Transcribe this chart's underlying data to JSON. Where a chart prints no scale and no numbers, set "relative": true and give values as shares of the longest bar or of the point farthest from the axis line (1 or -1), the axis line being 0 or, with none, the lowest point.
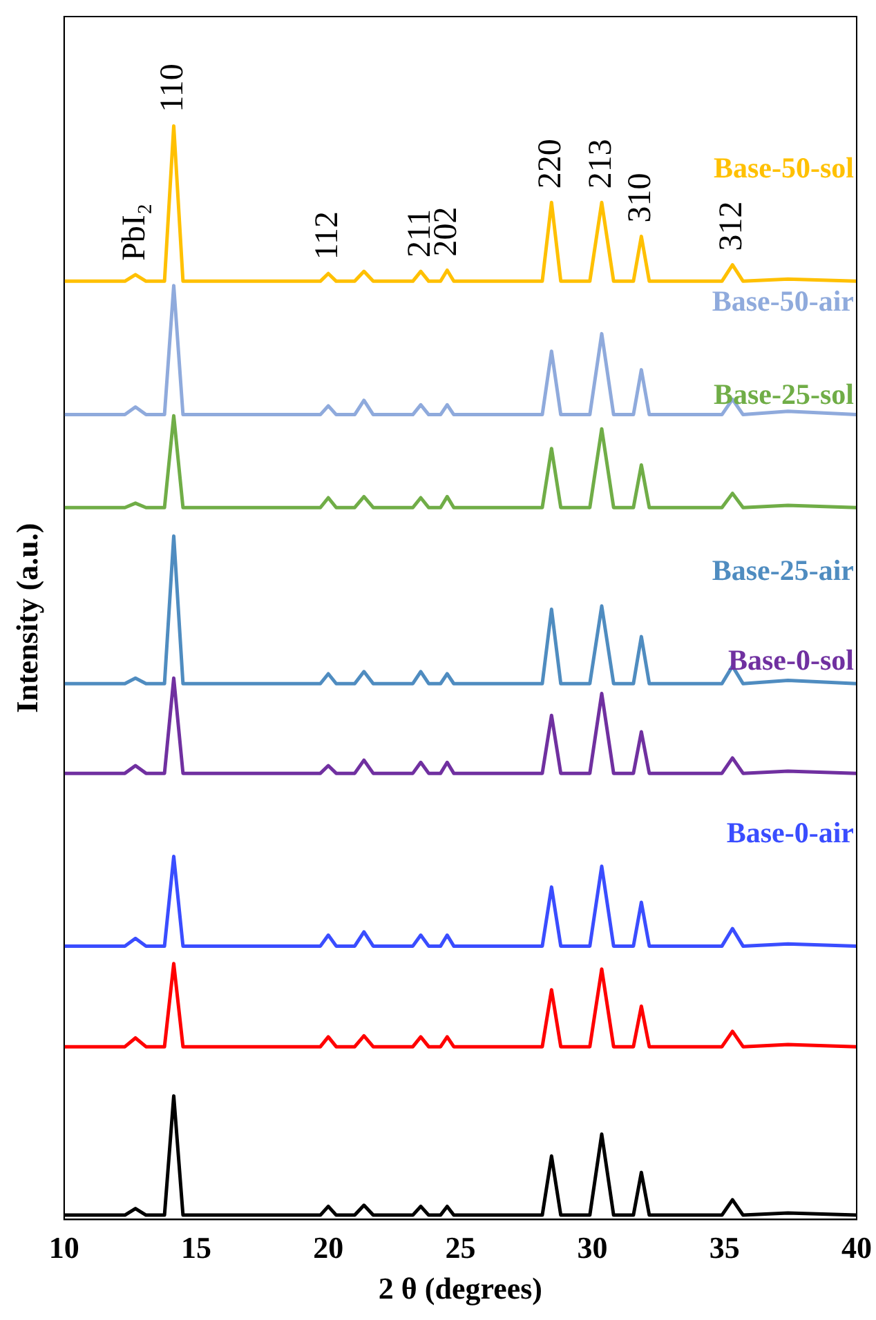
{
  "chart_data": {
    "type": "line",
    "relative": true,
    "xlabel": "2 θ (degrees)",
    "ylabel": "Intensity (a.u.)",
    "xlim": [
      10,
      40
    ],
    "xticks": [
      10,
      15,
      20,
      25,
      30,
      35,
      40
    ],
    "grid": false,
    "legend": false,
    "marker": "none",
    "line_style": "solid",
    "tick_labels": "x",
    "x": [
      10,
      12.3,
      12.7,
      13.1,
      13.8,
      14.15,
      14.5,
      19.7,
      20.0,
      20.3,
      21.0,
      21.35,
      21.7,
      23.2,
      23.5,
      23.8,
      24.25,
      24.5,
      24.75,
      28.1,
      28.45,
      28.8,
      29.9,
      30.35,
      30.8,
      31.55,
      31.85,
      32.15,
      34.9,
      35.3,
      35.7,
      37.4,
      40
    ],
    "annotations": [
      {
        "text": "PbI₂",
        "x": 12.7,
        "y": 0.864
      },
      {
        "text": "110",
        "x": 14.15,
        "y": 1.0
      },
      {
        "text": "112",
        "x": 20.0,
        "y": 0.865
      },
      {
        "text": "211",
        "x": 23.5,
        "y": 0.867
      },
      {
        "text": "202",
        "x": 24.5,
        "y": 0.868
      },
      {
        "text": "220",
        "x": 28.45,
        "y": 0.93
      },
      {
        "text": "213",
        "x": 30.35,
        "y": 0.93
      },
      {
        "text": "310",
        "x": 31.85,
        "y": 0.899
      },
      {
        "text": "312",
        "x": 35.3,
        "y": 0.873
      }
    ],
    "series": [
      {
        "name": "Base-50-sol",
        "color": "#ffc000",
        "values": [
          0.858,
          0.858,
          0.864,
          0.858,
          0.858,
          1.0,
          0.858,
          0.858,
          0.865,
          0.858,
          0.858,
          0.867,
          0.858,
          0.858,
          0.867,
          0.858,
          0.858,
          0.868,
          0.858,
          0.858,
          0.93,
          0.858,
          0.858,
          0.93,
          0.858,
          0.858,
          0.899,
          0.858,
          0.858,
          0.873,
          0.858,
          0.86,
          0.858
        ]
      },
      {
        "name": "Base-50-air",
        "color": "#8faadc",
        "values": [
          0.736,
          0.736,
          0.743,
          0.736,
          0.736,
          0.854,
          0.736,
          0.736,
          0.744,
          0.736,
          0.736,
          0.749,
          0.736,
          0.736,
          0.745,
          0.736,
          0.736,
          0.745,
          0.736,
          0.736,
          0.794,
          0.736,
          0.736,
          0.81,
          0.736,
          0.736,
          0.777,
          0.736,
          0.736,
          0.75,
          0.736,
          0.739,
          0.736
        ]
      },
      {
        "name": "Base-25-sol",
        "color": "#70ad47",
        "values": [
          0.651,
          0.651,
          0.655,
          0.651,
          0.651,
          0.735,
          0.651,
          0.651,
          0.66,
          0.651,
          0.651,
          0.661,
          0.651,
          0.651,
          0.66,
          0.651,
          0.651,
          0.661,
          0.651,
          0.651,
          0.705,
          0.651,
          0.651,
          0.723,
          0.651,
          0.651,
          0.69,
          0.651,
          0.651,
          0.664,
          0.651,
          0.653,
          0.651
        ]
      },
      {
        "name": "Base-25-air",
        "color": "#4f8cc0",
        "values": [
          0.49,
          0.49,
          0.495,
          0.49,
          0.49,
          0.625,
          0.49,
          0.49,
          0.499,
          0.49,
          0.49,
          0.501,
          0.49,
          0.49,
          0.501,
          0.49,
          0.49,
          0.499,
          0.49,
          0.49,
          0.558,
          0.49,
          0.49,
          0.561,
          0.49,
          0.49,
          0.533,
          0.49,
          0.49,
          0.506,
          0.49,
          0.493,
          0.49
        ]
      },
      {
        "name": "Base-0-sol",
        "color": "#7030a0",
        "values": [
          0.408,
          0.408,
          0.415,
          0.408,
          0.408,
          0.495,
          0.408,
          0.408,
          0.415,
          0.408,
          0.408,
          0.42,
          0.408,
          0.408,
          0.418,
          0.408,
          0.408,
          0.418,
          0.408,
          0.408,
          0.461,
          0.408,
          0.408,
          0.481,
          0.408,
          0.408,
          0.446,
          0.408,
          0.408,
          0.422,
          0.408,
          0.41,
          0.408
        ]
      },
      {
        "name": "Base-0-air",
        "color": "#3a4dff",
        "values": [
          0.25,
          0.25,
          0.257,
          0.25,
          0.25,
          0.332,
          0.25,
          0.25,
          0.26,
          0.25,
          0.25,
          0.263,
          0.25,
          0.25,
          0.26,
          0.25,
          0.25,
          0.26,
          0.25,
          0.25,
          0.304,
          0.25,
          0.25,
          0.323,
          0.25,
          0.25,
          0.29,
          0.25,
          0.25,
          0.266,
          0.25,
          0.252,
          0.25
        ]
      },
      {
        "color": "#ff0000",
        "values": [
          0.158,
          0.158,
          0.166,
          0.158,
          0.158,
          0.234,
          0.158,
          0.158,
          0.167,
          0.158,
          0.158,
          0.168,
          0.158,
          0.158,
          0.167,
          0.158,
          0.158,
          0.167,
          0.158,
          0.158,
          0.21,
          0.158,
          0.158,
          0.229,
          0.158,
          0.158,
          0.195,
          0.158,
          0.158,
          0.172,
          0.158,
          0.16,
          0.158
        ]
      },
      {
        "color": "#000000",
        "values": [
          0.004,
          0.004,
          0.01,
          0.004,
          0.004,
          0.113,
          0.004,
          0.004,
          0.012,
          0.004,
          0.004,
          0.013,
          0.004,
          0.004,
          0.012,
          0.004,
          0.004,
          0.012,
          0.004,
          0.004,
          0.058,
          0.004,
          0.004,
          0.078,
          0.004,
          0.004,
          0.043,
          0.004,
          0.004,
          0.018,
          0.004,
          0.006,
          0.004
        ]
      }
    ]
  }
}
